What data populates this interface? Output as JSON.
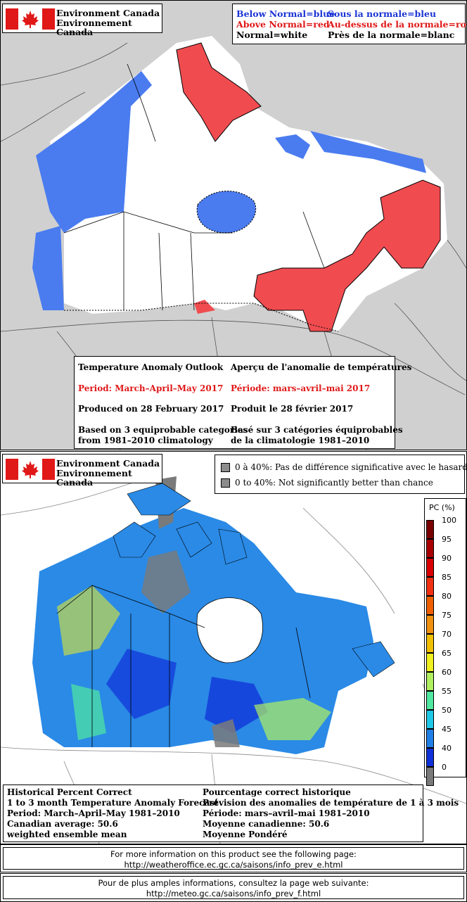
{
  "agency": {
    "name_en": "Environment Canada",
    "name_fr": "Environnement Canada"
  },
  "outlook_legend": {
    "below_en": "Below Normal=blue",
    "above_en": "Above Normal=red",
    "normal_en": "Normal=white",
    "below_fr": "Sous la normale=bleu",
    "above_fr": "Au-dessus de la normale=rouge",
    "normal_fr": "Près de la normale=blanc",
    "colors": {
      "below": "#4a7cf0",
      "above": "#f04c50",
      "normal": "#ffffff",
      "land": "#ffffff",
      "outside": "#d0d0d0"
    }
  },
  "outlook_info": {
    "title_en": "Temperature Anomaly Outlook",
    "title_fr": "Aperçu de l'anomalie de températures",
    "period_en": "Period: March–April–May 2017",
    "period_fr": "Période: mars–avril–mai 2017",
    "produced_en": "Produced on 28 February 2017",
    "produced_fr": "Produit le 28 février 2017",
    "basis_en_1": "Based on 3 equiprobable categories",
    "basis_en_2": "from 1981–2010 climatology",
    "basis_fr_1": "Basé sur 3 catégories équiprobables",
    "basis_fr_2": "de la climatologie 1981–2010"
  },
  "skill_legend": {
    "fr": "0 à 40%: Pas de différence significative avec le hasard",
    "en": "0 to 40%: Not significantly better than chance",
    "swatch_color": "#8c8c8c"
  },
  "skill_scale": {
    "title": "PC (%)",
    "labels": [
      "100",
      "95",
      "90",
      "85",
      "80",
      "75",
      "70",
      "65",
      "60",
      "55",
      "50",
      "45",
      "40",
      "0"
    ],
    "colors": [
      "#7a0000",
      "#a80000",
      "#d80000",
      "#f03010",
      "#f06000",
      "#f09010",
      "#f0c000",
      "#f0f020",
      "#b0f060",
      "#50e8a0",
      "#20c8e8",
      "#2080e8",
      "#1030d8",
      "#7a7a7a"
    ]
  },
  "skill_info": {
    "title_en": "Historical Percent Correct",
    "subtitle_en": "1 to 3 month Temperature Anomaly Forecast",
    "period_en": "Period: March–April–May 1981–2010",
    "average_en": "Canadian average: 50.6",
    "method_en": "weighted ensemble mean",
    "title_fr": "Pourcentage correct historique",
    "subtitle_fr": "Prévision des anomalies de température de 1 à 3 mois",
    "period_fr": "Période: mars–avril–mai 1981–2010",
    "average_fr": "Moyenne canadienne: 50.6",
    "method_fr": "Moyenne Pondéré"
  },
  "footer": {
    "en_line1": "For more information on this product see the following page:",
    "en_line2": "http://weatheroffice.ec.gc.ca/saisons/info_prev_e.html",
    "fr_line1": "Pour de plus amples informations, consultez la page web suivante:",
    "fr_line2": "http://meteo.gc.ca/saisons/info_prev_f.html"
  }
}
